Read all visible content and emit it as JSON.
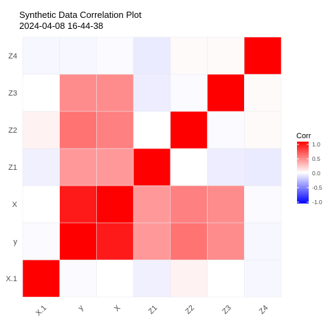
{
  "chart_data": {
    "type": "heatmap",
    "title": "Synthetic Data Correlation Plot",
    "subtitle": "2024-04-08 16-44-38",
    "x_categories": [
      "X.1",
      "y",
      "X",
      "Z1",
      "Z2",
      "Z3",
      "Z4"
    ],
    "y_categories": [
      "X.1",
      "y",
      "X",
      "Z1",
      "Z2",
      "Z3",
      "Z4"
    ],
    "matrix": [
      [
        1.0,
        -0.02,
        0.0,
        -0.06,
        0.05,
        0.0,
        -0.03
      ],
      [
        -0.02,
        1.0,
        0.9,
        0.4,
        0.55,
        0.45,
        -0.03
      ],
      [
        0.0,
        0.9,
        1.0,
        0.4,
        0.5,
        0.45,
        -0.02
      ],
      [
        -0.06,
        0.4,
        0.4,
        1.0,
        0.0,
        -0.07,
        -0.08
      ],
      [
        0.05,
        0.55,
        0.5,
        0.0,
        1.0,
        -0.02,
        0.02
      ],
      [
        0.0,
        0.45,
        0.45,
        -0.07,
        -0.02,
        1.0,
        0.02
      ],
      [
        -0.03,
        -0.03,
        -0.02,
        -0.08,
        0.02,
        0.02,
        1.0
      ]
    ],
    "legend": {
      "title": "Corr",
      "ticks": [
        "1.0",
        "0.5",
        "0.0",
        "-0.5",
        "-1.0"
      ],
      "tick_values": [
        1.0,
        0.5,
        0.0,
        -0.5,
        -1.0
      ],
      "range": [
        -1.0,
        1.0
      ],
      "low_color": "#0000FF",
      "mid_color": "#FFFFFF",
      "high_color": "#FF0000",
      "placement": "right"
    },
    "grid": true
  }
}
